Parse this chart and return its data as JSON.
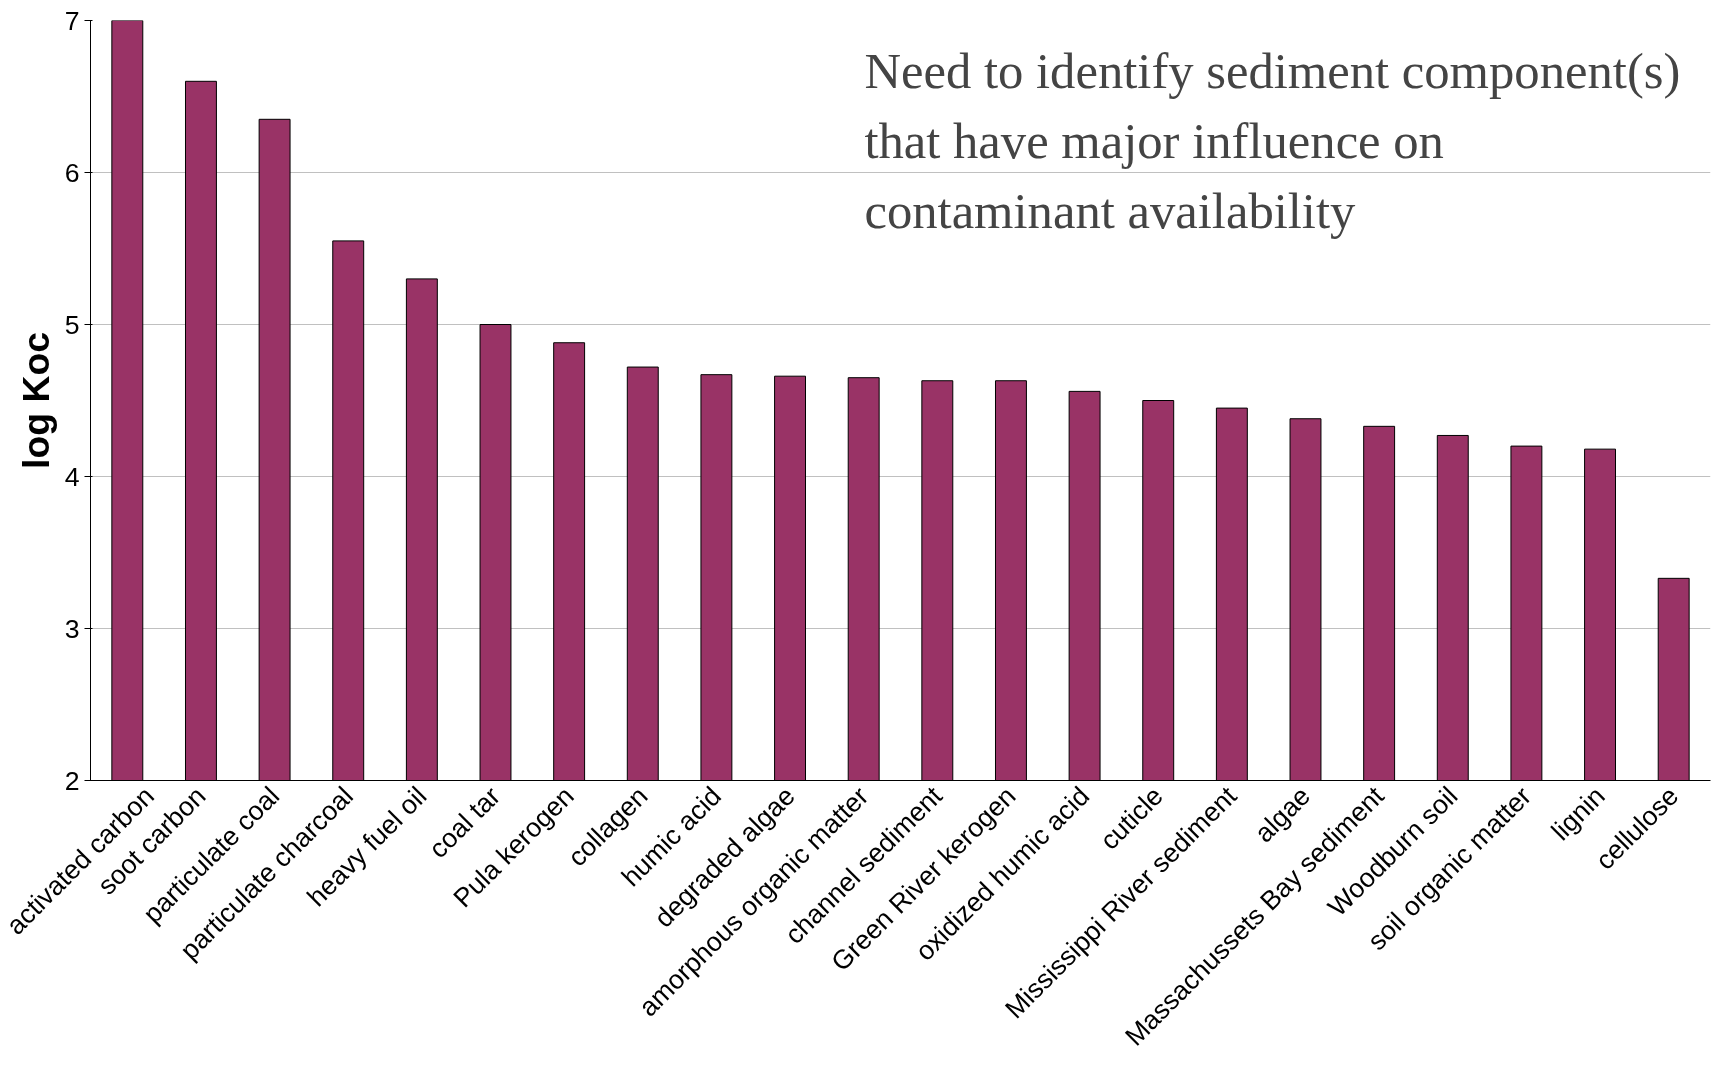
{
  "chart_data": {
    "type": "bar",
    "ylabel": "log Koc",
    "categories": [
      "activated carbon",
      "soot carbon",
      "particulate coal",
      "particulate charcoal",
      "heavy fuel oil",
      "coal tar",
      "Pula kerogen",
      "collagen",
      "humic acid",
      "degraded algae",
      "amorphous organic matter",
      "channel sediment",
      "Green River kerogen",
      "oxidized humic acid",
      "cuticle",
      "Mississippi River sediment",
      "algae",
      "Massachussets Bay sediment",
      "Woodburn soil",
      "soil organic matter",
      "lignin",
      "cellulose"
    ],
    "values": [
      7.0,
      6.6,
      6.35,
      5.55,
      5.3,
      5.0,
      4.88,
      4.72,
      4.67,
      4.66,
      4.65,
      4.63,
      4.63,
      4.56,
      4.5,
      4.45,
      4.38,
      4.33,
      4.27,
      4.2,
      4.18,
      3.33
    ],
    "color": "#993366",
    "ylim": [
      2,
      7
    ],
    "yticks": [
      2,
      3,
      4,
      5,
      6,
      7
    ],
    "grid": "y",
    "annotations": [
      "Need to identify sediment component(s) that have major influence on contaminant availability"
    ]
  }
}
